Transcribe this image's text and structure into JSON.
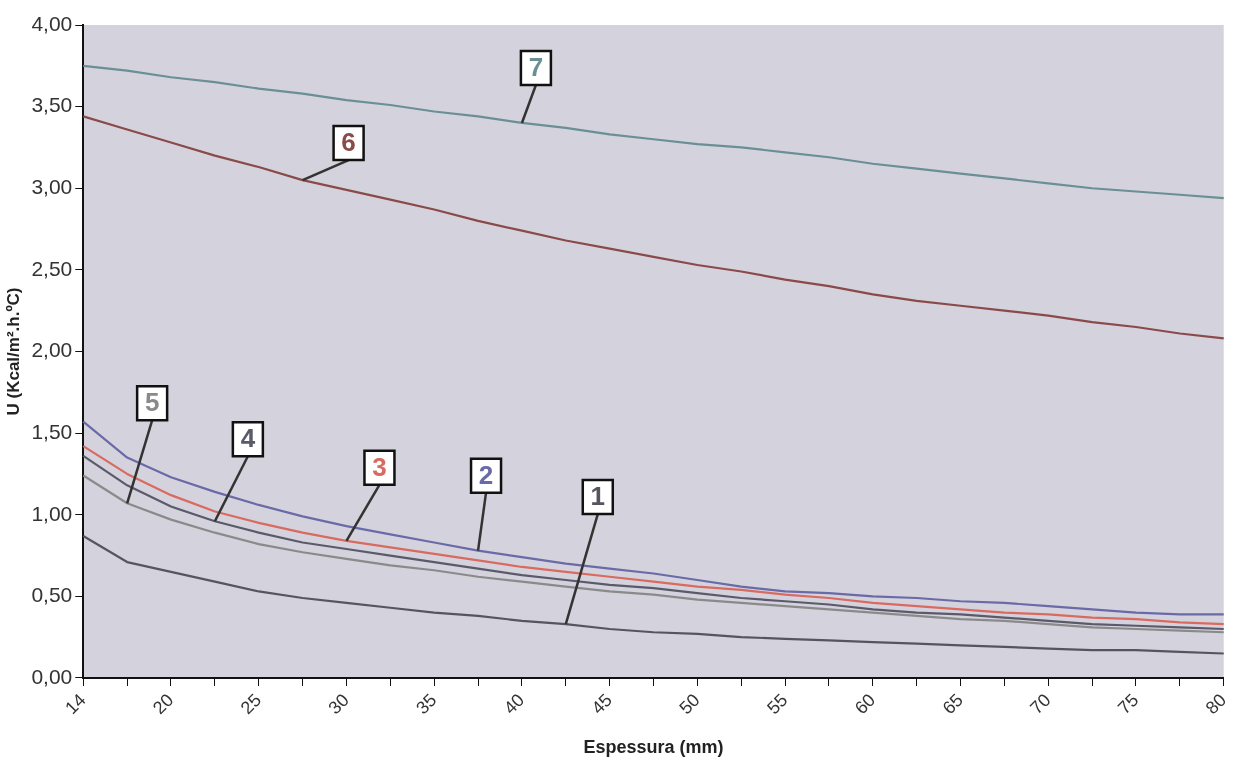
{
  "chart_data": {
    "type": "line",
    "xlabel": "Espessura (mm)",
    "ylabel": "U (Kcal/m².h.ºC)",
    "categories": [
      "14",
      null,
      "20",
      null,
      "25",
      null,
      "30",
      null,
      "35",
      null,
      "40",
      null,
      "45",
      null,
      "50",
      null,
      "55",
      null,
      "60",
      null,
      "65",
      null,
      "70",
      null,
      "75",
      null,
      "80"
    ],
    "ylim": [
      0,
      4
    ],
    "yticks": [
      {
        "value": 0,
        "label": "0,00"
      },
      {
        "value": 0.5,
        "label": "0,50"
      },
      {
        "value": 1,
        "label": "1,00"
      },
      {
        "value": 1.5,
        "label": "1,50"
      },
      {
        "value": 2,
        "label": "2,00"
      },
      {
        "value": 2.5,
        "label": "2,50"
      },
      {
        "value": 3,
        "label": "3,00"
      },
      {
        "value": 3.5,
        "label": "3,50"
      },
      {
        "value": 4,
        "label": "4,00"
      }
    ],
    "grid": false,
    "legend": false,
    "marker": "none",
    "line_style": "solid",
    "series": [
      {
        "name": "1",
        "color": "#55555f",
        "values": [
          0.87,
          0.71,
          0.65,
          0.59,
          0.53,
          0.49,
          0.46,
          0.43,
          0.4,
          0.38,
          0.35,
          0.33,
          0.3,
          0.28,
          0.27,
          0.25,
          0.24,
          0.23,
          0.22,
          0.21,
          0.2,
          0.19,
          0.18,
          0.17,
          0.17,
          0.16,
          0.15
        ]
      },
      {
        "name": "2",
        "color": "#6a6aa8",
        "values": [
          1.57,
          1.35,
          1.23,
          1.14,
          1.06,
          0.99,
          0.93,
          0.88,
          0.83,
          0.78,
          0.74,
          0.7,
          0.67,
          0.64,
          0.6,
          0.56,
          0.53,
          0.52,
          0.5,
          0.49,
          0.47,
          0.46,
          0.44,
          0.42,
          0.4,
          0.39,
          0.39
        ]
      },
      {
        "name": "3",
        "color": "#d96a60",
        "values": [
          1.42,
          1.25,
          1.12,
          1.02,
          0.95,
          0.89,
          0.84,
          0.8,
          0.76,
          0.72,
          0.68,
          0.65,
          0.62,
          0.59,
          0.56,
          0.54,
          0.51,
          0.49,
          0.46,
          0.44,
          0.42,
          0.4,
          0.39,
          0.37,
          0.36,
          0.34,
          0.33
        ]
      },
      {
        "name": "4",
        "color": "#5a5a6a",
        "values": [
          1.36,
          1.18,
          1.05,
          0.96,
          0.89,
          0.83,
          0.79,
          0.75,
          0.71,
          0.67,
          0.63,
          0.6,
          0.57,
          0.55,
          0.52,
          0.49,
          0.47,
          0.45,
          0.42,
          0.4,
          0.39,
          0.37,
          0.35,
          0.33,
          0.32,
          0.31,
          0.3
        ]
      },
      {
        "name": "5",
        "color": "#8a8a8a",
        "values": [
          1.24,
          1.07,
          0.97,
          0.89,
          0.82,
          0.77,
          0.73,
          0.69,
          0.66,
          0.62,
          0.59,
          0.56,
          0.53,
          0.51,
          0.48,
          0.46,
          0.44,
          0.42,
          0.4,
          0.38,
          0.36,
          0.35,
          0.33,
          0.31,
          0.3,
          0.29,
          0.28
        ]
      },
      {
        "name": "6",
        "color": "#8b4a4a",
        "values": [
          3.44,
          3.36,
          3.28,
          3.2,
          3.13,
          3.05,
          2.99,
          2.93,
          2.87,
          2.8,
          2.74,
          2.68,
          2.63,
          2.58,
          2.53,
          2.49,
          2.44,
          2.4,
          2.35,
          2.31,
          2.28,
          2.25,
          2.22,
          2.18,
          2.15,
          2.11,
          2.08
        ]
      },
      {
        "name": "7",
        "color": "#6a8f95",
        "values": [
          3.75,
          3.72,
          3.68,
          3.65,
          3.61,
          3.58,
          3.54,
          3.51,
          3.47,
          3.44,
          3.4,
          3.37,
          3.33,
          3.3,
          3.27,
          3.25,
          3.22,
          3.19,
          3.15,
          3.12,
          3.09,
          3.06,
          3.03,
          3.0,
          2.98,
          2.96,
          2.94
        ]
      }
    ]
  }
}
